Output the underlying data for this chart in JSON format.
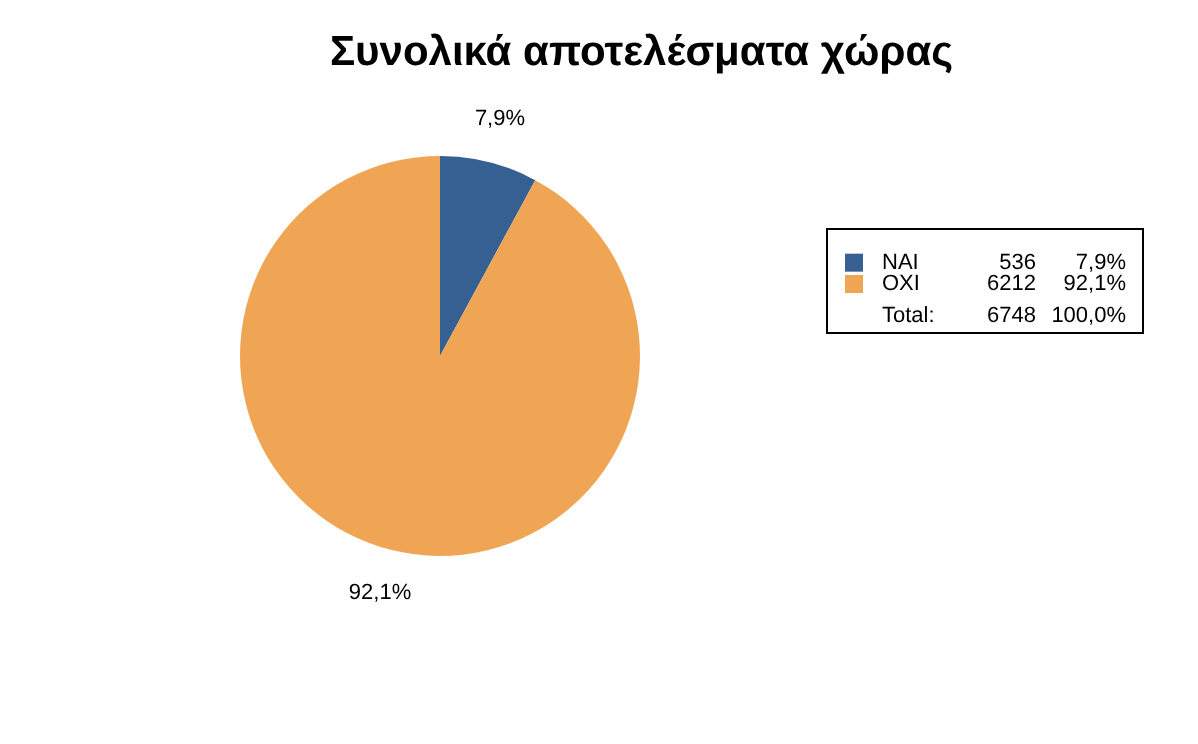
{
  "chart_data": {
    "type": "pie",
    "title": "Συνολικά αποτελέσματα χώρας",
    "categories": [
      "NAI",
      "OXI"
    ],
    "values": [
      7.9,
      92.1
    ],
    "colors": [
      "#366092",
      "#f0a555"
    ],
    "value_labels": [
      "7,9%",
      "92,1%"
    ],
    "legend": "right",
    "annotations": [
      "536",
      "6212",
      "Total:",
      "6748",
      "100,0%"
    ]
  }
}
